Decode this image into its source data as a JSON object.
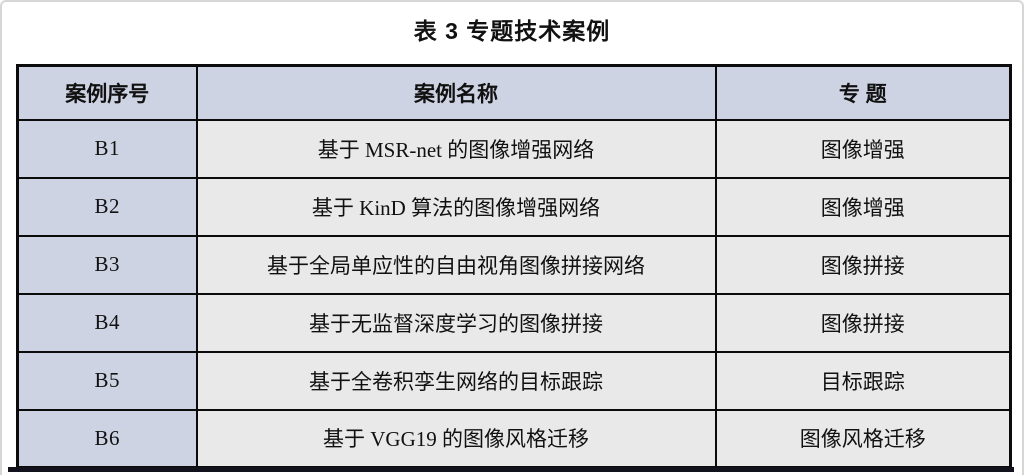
{
  "page": {
    "caption": "表 3  专题技术案例"
  },
  "table": {
    "columns": [
      {
        "label": "案例序号"
      },
      {
        "label": "案例名称"
      },
      {
        "label": "专  题"
      }
    ],
    "rows": [
      {
        "id": "B1",
        "name": "基于 MSR-net 的图像增强网络",
        "topic": "图像增强"
      },
      {
        "id": "B2",
        "name": "基于 KinD 算法的图像增强网络",
        "topic": "图像增强"
      },
      {
        "id": "B3",
        "name": "基于全局单应性的自由视角图像拼接网络",
        "topic": "图像拼接"
      },
      {
        "id": "B4",
        "name": "基于无监督深度学习的图像拼接",
        "topic": "图像拼接"
      },
      {
        "id": "B5",
        "name": "基于全卷积孪生网络的目标跟踪",
        "topic": "目标跟踪"
      },
      {
        "id": "B6",
        "name": "基于 VGG19 的图像风格迁移",
        "topic": "图像风格迁移"
      }
    ]
  },
  "colors": {
    "header_bg": "#cdd3e3",
    "id_cell_bg": "#cdd3e3",
    "cell_bg": "#e9e9e9",
    "table_border": "#0b0b0b",
    "bottom_bar": "#12121c",
    "page_edge": "#d6d6d6"
  }
}
